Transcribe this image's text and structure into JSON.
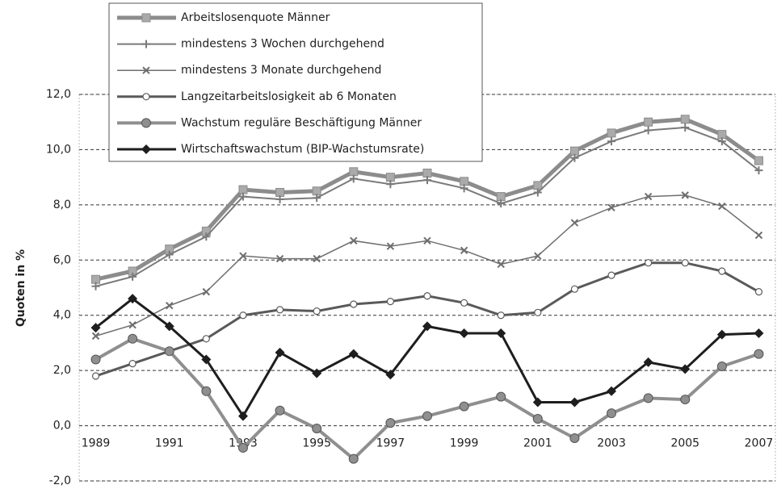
{
  "chart_data": {
    "type": "line",
    "ylabel": "Quoten in %",
    "x": [
      1989,
      1990,
      1991,
      1992,
      1993,
      1994,
      1995,
      1996,
      1997,
      1998,
      1999,
      2000,
      2001,
      2002,
      2003,
      2004,
      2005,
      2006,
      2007
    ],
    "xlim": [
      1988.55,
      2007.45
    ],
    "xticks": [
      1989,
      1991,
      1993,
      1995,
      1997,
      1999,
      2001,
      2003,
      2005,
      2007
    ],
    "ylim": [
      -2,
      12
    ],
    "yticks": [
      {
        "value": -2,
        "label": "-2,0"
      },
      {
        "value": 0,
        "label": "0,0"
      },
      {
        "value": 2,
        "label": "2,0"
      },
      {
        "value": 4,
        "label": "4,0"
      },
      {
        "value": 6,
        "label": "6,0"
      },
      {
        "value": 8,
        "label": "8,0"
      },
      {
        "value": 10,
        "label": "10,0"
      },
      {
        "value": 12,
        "label": "12,0"
      }
    ],
    "grid": true,
    "legend": "upper left",
    "series": [
      {
        "name": "Arbeitslosenquote Männer",
        "color": "#8c8c8c",
        "marker": "square",
        "values": [
          5.3,
          5.6,
          6.4,
          7.05,
          8.55,
          8.45,
          8.5,
          9.2,
          9.0,
          9.15,
          8.85,
          8.3,
          8.7,
          9.95,
          10.6,
          11.0,
          11.1,
          10.55,
          9.6
        ]
      },
      {
        "name": "mindestens 3 Wochen durchgehend",
        "color": "#7a7a7a",
        "marker": "plus",
        "values": [
          5.05,
          5.4,
          6.2,
          6.85,
          8.3,
          8.2,
          8.25,
          8.95,
          8.75,
          8.9,
          8.6,
          8.05,
          8.45,
          9.7,
          10.3,
          10.7,
          10.8,
          10.3,
          9.25
        ]
      },
      {
        "name": "mindestens 3 Monate durchgehend",
        "color": "#6e6e6e",
        "marker": "x",
        "values": [
          3.25,
          3.65,
          4.35,
          4.85,
          6.15,
          6.05,
          6.05,
          6.7,
          6.5,
          6.7,
          6.35,
          5.85,
          6.15,
          7.35,
          7.9,
          8.3,
          8.35,
          7.95,
          6.9
        ]
      },
      {
        "name": "Langzeitarbeitslosigkeit ab 6 Monaten",
        "color": "#5a5a5a",
        "marker": "circle-open",
        "values": [
          1.8,
          2.25,
          2.7,
          3.15,
          4.0,
          4.2,
          4.15,
          4.4,
          4.5,
          4.7,
          4.45,
          4.0,
          4.1,
          4.95,
          5.45,
          5.9,
          5.9,
          5.6,
          4.85
        ]
      },
      {
        "name": "Wachstum reguläre Beschäftigung Männer",
        "color": "#8f8f8f",
        "marker": "circle",
        "values": [
          2.4,
          3.15,
          2.7,
          1.25,
          -0.8,
          0.55,
          -0.1,
          -1.2,
          0.1,
          0.35,
          0.7,
          1.05,
          0.25,
          -0.45,
          0.45,
          1.0,
          0.95,
          2.15,
          2.6
        ]
      },
      {
        "name": "Wirtschaftswachstum (BIP-Wachstumsrate)",
        "color": "#1e1e1e",
        "marker": "diamond",
        "values": [
          3.55,
          4.6,
          3.6,
          2.4,
          0.35,
          2.65,
          1.9,
          2.6,
          1.85,
          3.6,
          3.35,
          3.35,
          0.85,
          0.85,
          1.25,
          2.3,
          2.05,
          3.3,
          3.35
        ]
      }
    ]
  }
}
